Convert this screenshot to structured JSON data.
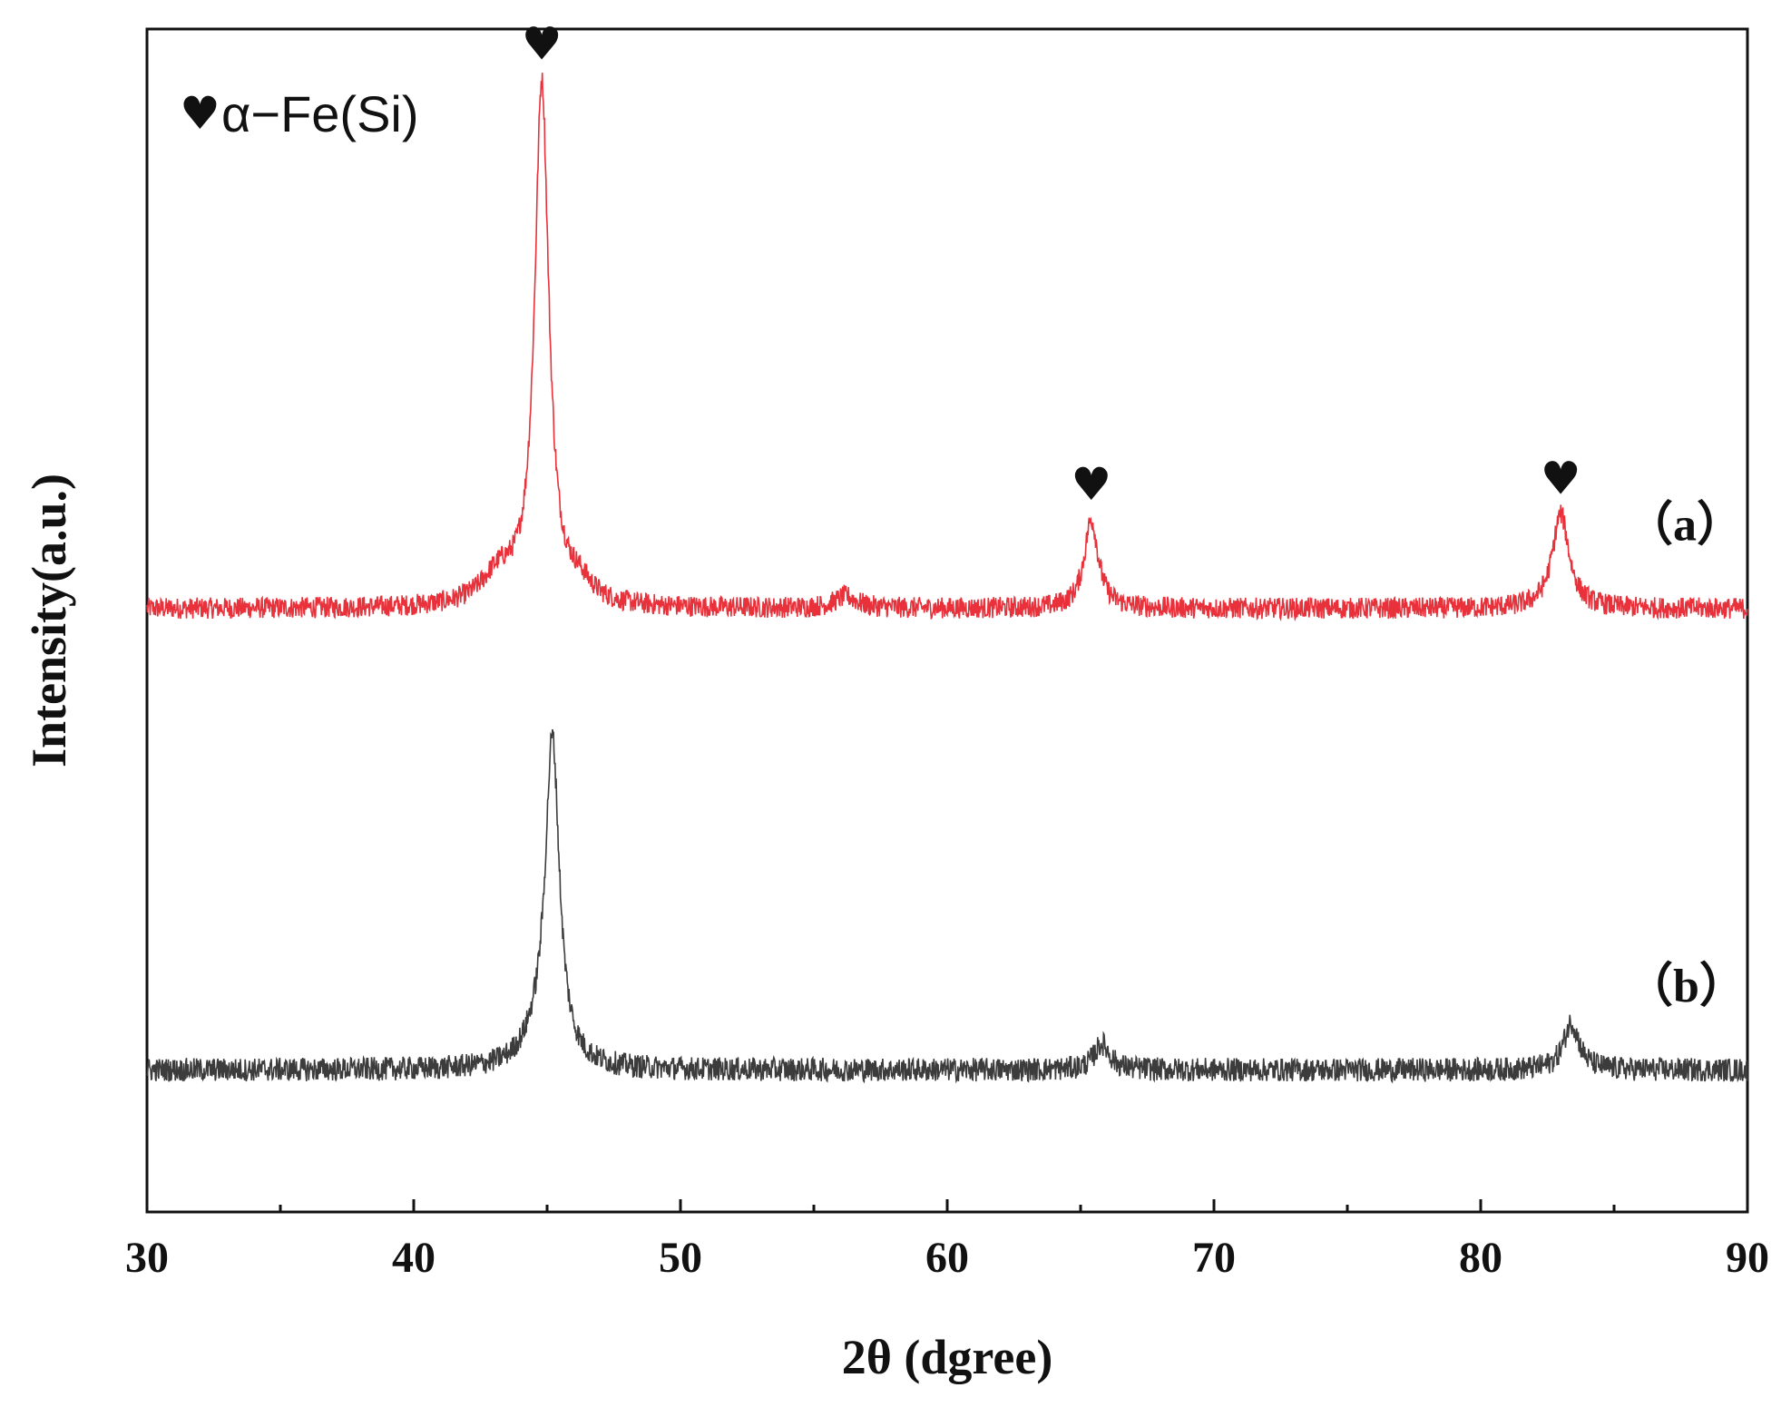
{
  "chart_data": {
    "type": "line",
    "title": "",
    "xlabel": "2θ (dgree)",
    "ylabel": "Intensity(a.u.)",
    "xlim": [
      30,
      90
    ],
    "ylim": [
      0,
      100
    ],
    "xticks": [
      "30",
      "40",
      "50",
      "60",
      "70",
      "80",
      "90"
    ],
    "yticks_shown": false,
    "grid": false,
    "legend": {
      "position": "top-left",
      "symbol": "♥",
      "phase": "α−Fe(Si)"
    },
    "series": [
      {
        "name": "（a）",
        "color": "#e8313a",
        "baseline": 51,
        "noise": 0.9,
        "peaks": [
          {
            "x": 44.8,
            "height": 44,
            "width": 0.32
          },
          {
            "x": 43.2,
            "height": 2.5,
            "width": 0.8
          },
          {
            "x": 46.2,
            "height": 1.5,
            "width": 0.6
          },
          {
            "x": 56.2,
            "height": 1,
            "width": 0.5
          },
          {
            "x": 65.4,
            "height": 7.5,
            "width": 0.32
          },
          {
            "x": 83.0,
            "height": 8,
            "width": 0.38
          }
        ],
        "markers_x": [
          44.8,
          65.4,
          83.0
        ]
      },
      {
        "name": "（b）",
        "color": "#3c3c3c",
        "baseline": 12,
        "noise": 1.0,
        "peaks": [
          {
            "x": 45.2,
            "height": 27,
            "width": 0.32
          },
          {
            "x": 44.7,
            "height": 2,
            "width": 0.7
          },
          {
            "x": 65.8,
            "height": 2.2,
            "width": 0.35
          },
          {
            "x": 83.4,
            "height": 4,
            "width": 0.35
          }
        ]
      }
    ]
  }
}
